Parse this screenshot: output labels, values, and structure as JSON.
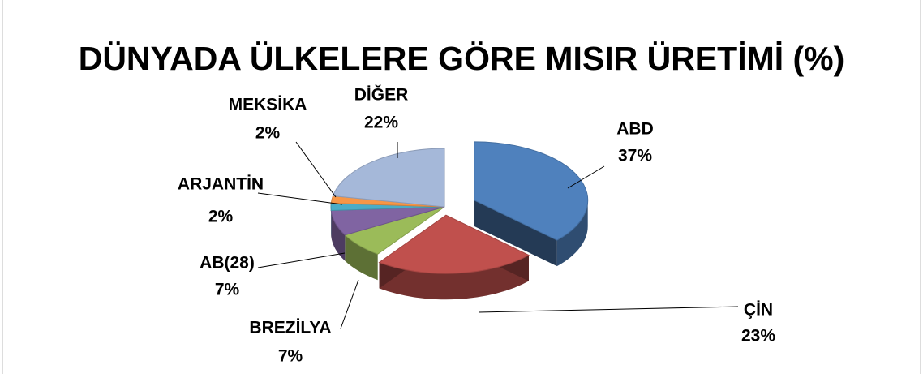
{
  "chart_data": {
    "type": "pie3d",
    "title": "DÜNYADA ÜLKELERE GÖRE  MISIR ÜRETİMİ (%)",
    "categories": [
      "ABD",
      "ÇİN",
      "BREZİLYA",
      "AB(28)",
      "ARJANTİN",
      "MEKSİKA",
      "DİĞER"
    ],
    "values": [
      37,
      23,
      7,
      7,
      2,
      2,
      22
    ],
    "value_labels": [
      "37%",
      "23%",
      "7%",
      "7%",
      "2%",
      "2%",
      "22%"
    ],
    "colors": [
      "#4f81bd",
      "#c0504d",
      "#9bbb59",
      "#8064a2",
      "#4bacc6",
      "#f79646",
      "#a5b8d9"
    ]
  }
}
